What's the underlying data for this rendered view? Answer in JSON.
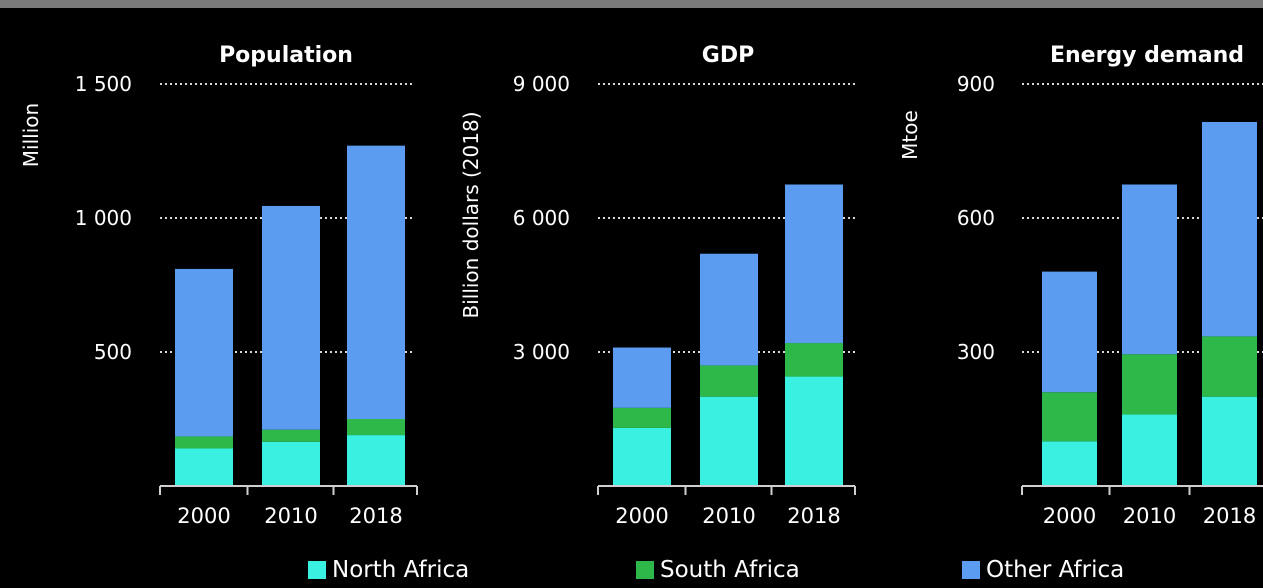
{
  "legend": {
    "north": "North Africa",
    "south": "South Africa",
    "other": "Other Africa"
  },
  "colors": {
    "north": "#3af0e0",
    "south": "#2eb84a",
    "other": "#5b9cf0",
    "background": "#000000",
    "gridline": "#d8d8d8"
  },
  "chart_data": [
    {
      "type": "bar",
      "stacked": true,
      "title": "Population",
      "ylabel": "Million",
      "categories": [
        "2000",
        "2010",
        "2018"
      ],
      "ylim": [
        0,
        1500
      ],
      "yticks": [
        500,
        1000,
        1500
      ],
      "ytick_labels": [
        "500",
        "1 000",
        "1 500"
      ],
      "grid": "dotted horizontal",
      "series": [
        {
          "name": "North Africa",
          "values": [
            140,
            165,
            190
          ]
        },
        {
          "name": "South Africa",
          "values": [
            45,
            45,
            60
          ]
        },
        {
          "name": "Other Africa",
          "values": [
            625,
            835,
            1020
          ]
        }
      ]
    },
    {
      "type": "bar",
      "stacked": true,
      "title": "GDP",
      "ylabel": "Billion dollars (2018)",
      "categories": [
        "2000",
        "2010",
        "2018"
      ],
      "ylim": [
        0,
        9000
      ],
      "yticks": [
        3000,
        6000,
        9000
      ],
      "ytick_labels": [
        "3 000",
        "6 000",
        "9 000"
      ],
      "grid": "dotted horizontal",
      "series": [
        {
          "name": "North Africa",
          "values": [
            1300,
            2000,
            2450
          ]
        },
        {
          "name": "South Africa",
          "values": [
            450,
            700,
            750
          ]
        },
        {
          "name": "Other Africa",
          "values": [
            1350,
            2500,
            3550
          ]
        }
      ]
    },
    {
      "type": "bar",
      "stacked": true,
      "title": "Energy demand",
      "ylabel": "Mtoe",
      "categories": [
        "2000",
        "2010",
        "2018"
      ],
      "ylim": [
        0,
        900
      ],
      "yticks": [
        300,
        600,
        900
      ],
      "ytick_labels": [
        "300",
        "600",
        "900"
      ],
      "grid": "dotted horizontal",
      "series": [
        {
          "name": "North Africa",
          "values": [
            100,
            160,
            200
          ]
        },
        {
          "name": "South Africa",
          "values": [
            110,
            135,
            135
          ]
        },
        {
          "name": "Other Africa",
          "values": [
            270,
            380,
            480
          ]
        }
      ]
    }
  ]
}
